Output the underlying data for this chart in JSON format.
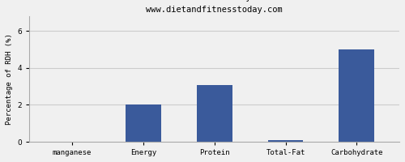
{
  "subtitle": "www.dietandfitnesstoday.com",
  "categories": [
    "manganese",
    "Energy",
    "Protein",
    "Total-Fat",
    "Carbohydrate"
  ],
  "values": [
    0.0,
    2.0,
    3.07,
    0.07,
    5.0
  ],
  "bar_color": "#3a5a9b",
  "ylabel": "Percentage of RDH (%)",
  "ylim": [
    0,
    6.8
  ],
  "yticks": [
    0,
    2,
    4,
    6
  ],
  "background_color": "#f0f0f0",
  "grid_color": "#cccccc",
  "title_fontsize": 9,
  "subtitle_fontsize": 7.5,
  "tick_fontsize": 6.5,
  "ylabel_fontsize": 6.5
}
